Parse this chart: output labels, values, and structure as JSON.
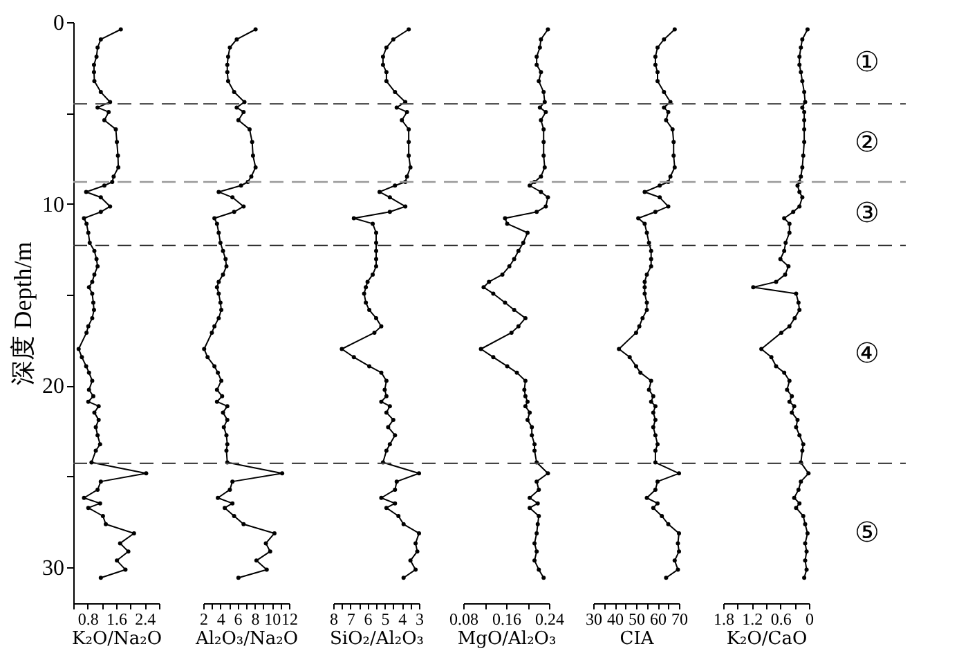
{
  "chart_data": [
    {
      "type": "line",
      "orientation": "horizontal",
      "color": "#000000",
      "marker": "circle",
      "xlabel": "K₂O/Na₂O",
      "ylabel": "深度 Depth/m",
      "xlim": [
        0.4,
        2.8
      ],
      "xticks": [
        {
          "value": 0.4,
          "label": null
        },
        0.8,
        {
          "value": 1.2,
          "label": null
        },
        1.6,
        {
          "value": 2.0,
          "label": null
        },
        2.4,
        {
          "value": 2.8,
          "label": null
        }
      ],
      "ylim": [
        32,
        0
      ],
      "yticks": [
        0,
        {
          "value": 5,
          "label": null
        },
        10,
        {
          "value": 15,
          "label": null
        },
        20,
        {
          "value": 25,
          "label": null
        },
        30
      ],
      "x": [
        0.4,
        0.95,
        1.4,
        1.9,
        2.35,
        2.75,
        3.25,
        3.85,
        4.4,
        4.7,
        4.95,
        5.4,
        5.9,
        6.6,
        7.35,
        8.0,
        8.5,
        8.8,
        9.0,
        9.35,
        9.65,
        10.15,
        10.45,
        10.8,
        11.1,
        11.6,
        12.15,
        12.6,
        13.05,
        13.45,
        13.9,
        14.3,
        14.6,
        14.95,
        15.45,
        15.85,
        16.3,
        16.75,
        17.1,
        18.0,
        18.45,
        18.95,
        19.3,
        19.75,
        20.25,
        20.6,
        20.9,
        21.15,
        21.5,
        21.9,
        22.3,
        22.75,
        23.25,
        23.6,
        24.25,
        24.85,
        25.3,
        25.75,
        26.2,
        26.5,
        26.75,
        27.2,
        27.65,
        28.15,
        28.7,
        29.15,
        29.65,
        30.15,
        30.6
      ],
      "values": [
        1.73,
        1.17,
        1.08,
        1.05,
        0.98,
        0.98,
        0.99,
        1.17,
        1.43,
        1.08,
        1.39,
        1.27,
        1.59,
        1.62,
        1.65,
        1.66,
        1.53,
        1.49,
        1.27,
        0.76,
        1.17,
        1.43,
        1.17,
        0.7,
        0.77,
        0.82,
        0.86,
        0.99,
        1.05,
        1.08,
        0.99,
        0.93,
        0.84,
        0.93,
        0.96,
        0.98,
        0.93,
        0.82,
        0.77,
        0.55,
        0.64,
        0.76,
        0.84,
        0.93,
        0.84,
        0.96,
        0.82,
        1.11,
        0.99,
        1.11,
        1.03,
        1.08,
        1.15,
        1.03,
        0.91,
        2.44,
        1.17,
        1.08,
        0.7,
        1.15,
        0.82,
        1.23,
        1.31,
        2.1,
        1.71,
        1.94,
        1.62,
        1.86,
        1.17
      ],
      "ref_lines": [
        {
          "axis": "y",
          "value": 4.5,
          "color": "#555555",
          "line_style": "dashed"
        },
        {
          "axis": "y",
          "value": 8.8,
          "color": "#999999",
          "line_style": "dashed"
        },
        {
          "axis": "y",
          "value": 12.3,
          "color": "#333333",
          "line_style": "dashed"
        },
        {
          "axis": "y",
          "value": 24.3,
          "color": "#444444",
          "line_style": "dashed"
        }
      ]
    },
    {
      "type": "line",
      "orientation": "horizontal",
      "color": "#000000",
      "marker": "circle",
      "xlabel": "Al₂O₃/Na₂O",
      "tick_labels": "x",
      "xlim": [
        2,
        12
      ],
      "xticks": [
        2,
        {
          "value": 3,
          "label": null
        },
        4,
        {
          "value": 5,
          "label": null
        },
        6,
        {
          "value": 7,
          "label": null
        },
        8,
        {
          "value": 9,
          "label": null
        },
        10,
        {
          "value": 11,
          "label": null
        },
        12
      ],
      "ylim": [
        32,
        0
      ],
      "x": [
        0.4,
        0.95,
        1.4,
        1.9,
        2.35,
        2.75,
        3.25,
        3.85,
        4.4,
        4.7,
        4.95,
        5.4,
        5.9,
        6.6,
        7.35,
        8.0,
        8.5,
        8.8,
        9.0,
        9.35,
        9.65,
        10.15,
        10.45,
        10.8,
        11.1,
        11.6,
        12.15,
        12.6,
        13.05,
        13.45,
        13.9,
        14.3,
        14.6,
        14.95,
        15.45,
        15.85,
        16.3,
        16.75,
        17.1,
        18.0,
        18.45,
        18.95,
        19.3,
        19.75,
        20.25,
        20.6,
        20.9,
        21.15,
        21.5,
        21.9,
        22.3,
        22.75,
        23.25,
        23.6,
        24.25,
        24.85,
        25.3,
        25.75,
        26.2,
        26.5,
        26.75,
        27.2,
        27.65,
        28.15,
        28.7,
        29.15,
        29.65,
        30.15,
        30.6
      ],
      "values": [
        8.1,
        5.9,
        5.1,
        4.9,
        4.8,
        4.8,
        4.9,
        5.6,
        6.8,
        5.9,
        6.7,
        6.1,
        7.4,
        7.7,
        7.8,
        8.1,
        7.6,
        7.2,
        6.4,
        3.8,
        5.4,
        6.7,
        5.6,
        3.3,
        3.6,
        3.8,
        4.0,
        4.3,
        4.6,
        4.7,
        4.3,
        3.8,
        3.6,
        3.8,
        4.0,
        4.1,
        3.8,
        3.3,
        3.0,
        2.1,
        2.5,
        3.3,
        3.7,
        4.1,
        3.6,
        4.2,
        3.6,
        4.8,
        4.3,
        4.8,
        4.4,
        4.7,
        4.8,
        4.7,
        4.8,
        11.2,
        5.4,
        5.1,
        3.7,
        5.4,
        4.5,
        5.6,
        6.7,
        10.3,
        9.3,
        9.8,
        8.2,
        9.4,
        6.1
      ],
      "ref_lines": [
        {
          "axis": "y",
          "value": 4.5,
          "color": "#555555",
          "line_style": "dashed"
        },
        {
          "axis": "y",
          "value": 8.8,
          "color": "#999999",
          "line_style": "dashed"
        },
        {
          "axis": "y",
          "value": 12.3,
          "color": "#333333",
          "line_style": "dashed"
        },
        {
          "axis": "y",
          "value": 24.3,
          "color": "#444444",
          "line_style": "dashed"
        }
      ]
    },
    {
      "type": "line",
      "orientation": "horizontal",
      "color": "#000000",
      "marker": "circle",
      "xlabel": "SiO₂/Al₂O₃",
      "tick_labels": "x",
      "xlim": [
        8,
        3
      ],
      "xticks": [
        8,
        {
          "value": 7.5,
          "label": null
        },
        7,
        {
          "value": 6.5,
          "label": null
        },
        6,
        {
          "value": 5.5,
          "label": null
        },
        5,
        {
          "value": 4.5,
          "label": null
        },
        4,
        {
          "value": 3.5,
          "label": null
        },
        3
      ],
      "ylim": [
        32,
        0
      ],
      "x": [
        0.4,
        0.95,
        1.4,
        1.9,
        2.35,
        2.75,
        3.25,
        3.85,
        4.4,
        4.7,
        4.95,
        5.4,
        5.9,
        6.6,
        7.35,
        8.0,
        8.5,
        8.8,
        9.0,
        9.35,
        9.65,
        10.15,
        10.45,
        10.8,
        11.1,
        11.6,
        12.15,
        12.6,
        13.05,
        13.45,
        13.9,
        14.3,
        14.6,
        14.95,
        15.45,
        15.85,
        16.3,
        16.75,
        17.1,
        18.0,
        18.45,
        18.95,
        19.3,
        19.75,
        20.25,
        20.6,
        20.9,
        21.15,
        21.5,
        21.9,
        22.3,
        22.75,
        23.25,
        23.6,
        24.25,
        24.85,
        25.3,
        25.75,
        26.2,
        26.5,
        26.75,
        27.2,
        27.65,
        28.15,
        28.7,
        29.15,
        29.65,
        30.15,
        30.6
      ],
      "values": [
        3.6,
        4.5,
        4.9,
        5.1,
        5.1,
        4.9,
        4.9,
        4.4,
        3.8,
        4.3,
        3.7,
        4.0,
        3.6,
        3.6,
        3.6,
        3.5,
        3.7,
        3.8,
        4.4,
        5.3,
        4.7,
        3.8,
        4.7,
        6.8,
        5.7,
        5.5,
        5.5,
        5.5,
        5.5,
        5.5,
        5.7,
        6.0,
        6.1,
        6.2,
        6.1,
        5.9,
        5.5,
        5.2,
        5.6,
        7.5,
        6.8,
        5.9,
        5.2,
        4.9,
        5.0,
        4.9,
        5.2,
        4.7,
        4.9,
        4.5,
        4.8,
        4.4,
        4.7,
        4.9,
        5.1,
        3.0,
        4.3,
        4.4,
        5.2,
        4.4,
        4.9,
        4.2,
        3.9,
        3.0,
        3.2,
        3.1,
        3.5,
        3.2,
        3.9
      ],
      "ref_lines": [
        {
          "axis": "y",
          "value": 4.5,
          "color": "#555555",
          "line_style": "dashed"
        },
        {
          "axis": "y",
          "value": 8.8,
          "color": "#999999",
          "line_style": "dashed"
        },
        {
          "axis": "y",
          "value": 12.3,
          "color": "#333333",
          "line_style": "dashed"
        },
        {
          "axis": "y",
          "value": 24.3,
          "color": "#444444",
          "line_style": "dashed"
        }
      ]
    },
    {
      "type": "line",
      "orientation": "horizontal",
      "color": "#000000",
      "marker": "circle",
      "xlabel": "MgO/Al₂O₃",
      "tick_labels": "x",
      "xlim": [
        0.08,
        0.24
      ],
      "xticks": [
        0.08,
        {
          "value": 0.12,
          "label": null
        },
        0.16,
        {
          "value": 0.2,
          "label": null
        },
        0.24
      ],
      "ylim": [
        32,
        0
      ],
      "x": [
        0.4,
        0.95,
        1.4,
        1.9,
        2.35,
        2.75,
        3.25,
        3.85,
        4.4,
        4.7,
        4.95,
        5.4,
        5.9,
        6.6,
        7.35,
        8.0,
        8.5,
        8.8,
        9.0,
        9.35,
        9.65,
        10.15,
        10.45,
        10.8,
        11.1,
        11.6,
        12.15,
        12.6,
        13.05,
        13.45,
        13.9,
        14.3,
        14.6,
        14.95,
        15.45,
        15.85,
        16.3,
        16.75,
        17.1,
        18.0,
        18.45,
        18.95,
        19.3,
        19.75,
        20.25,
        20.6,
        20.9,
        21.15,
        21.5,
        21.9,
        22.3,
        22.75,
        23.25,
        23.6,
        24.25,
        24.85,
        25.3,
        25.75,
        26.2,
        26.5,
        26.75,
        27.2,
        27.65,
        28.15,
        28.7,
        29.15,
        29.65,
        30.15,
        30.6
      ],
      "values": [
        0.238,
        0.225,
        0.223,
        0.217,
        0.217,
        0.225,
        0.221,
        0.23,
        0.232,
        0.223,
        0.234,
        0.225,
        0.23,
        0.23,
        0.23,
        0.232,
        0.225,
        0.213,
        0.204,
        0.225,
        0.238,
        0.234,
        0.217,
        0.158,
        0.162,
        0.2,
        0.192,
        0.183,
        0.175,
        0.166,
        0.153,
        0.128,
        0.118,
        0.136,
        0.158,
        0.175,
        0.196,
        0.183,
        0.17,
        0.113,
        0.136,
        0.162,
        0.18,
        0.196,
        0.194,
        0.196,
        0.2,
        0.196,
        0.204,
        0.2,
        0.208,
        0.208,
        0.213,
        0.213,
        0.217,
        0.238,
        0.217,
        0.221,
        0.204,
        0.219,
        0.204,
        0.221,
        0.219,
        0.217,
        0.213,
        0.217,
        0.213,
        0.221,
        0.23
      ],
      "ref_lines": [
        {
          "axis": "y",
          "value": 4.5,
          "color": "#555555",
          "line_style": "dashed"
        },
        {
          "axis": "y",
          "value": 8.8,
          "color": "#999999",
          "line_style": "dashed"
        },
        {
          "axis": "y",
          "value": 12.3,
          "color": "#333333",
          "line_style": "dashed"
        },
        {
          "axis": "y",
          "value": 24.3,
          "color": "#444444",
          "line_style": "dashed"
        }
      ]
    },
    {
      "type": "line",
      "orientation": "horizontal",
      "color": "#000000",
      "marker": "circle",
      "xlabel": "CIA",
      "tick_labels": "x",
      "xlim": [
        30,
        70
      ],
      "xticks": [
        30,
        {
          "value": 35,
          "label": null
        },
        40,
        {
          "value": 45,
          "label": null
        },
        50,
        {
          "value": 55,
          "label": null
        },
        60,
        {
          "value": 65,
          "label": null
        },
        70
      ],
      "ylim": [
        32,
        0
      ],
      "x": [
        0.4,
        0.95,
        1.4,
        1.9,
        2.35,
        2.75,
        3.25,
        3.85,
        4.4,
        4.7,
        4.95,
        5.4,
        5.9,
        6.6,
        7.35,
        8.0,
        8.5,
        8.8,
        9.0,
        9.35,
        9.65,
        10.15,
        10.45,
        10.8,
        11.1,
        11.6,
        12.15,
        12.6,
        13.05,
        13.45,
        13.9,
        14.3,
        14.6,
        14.95,
        15.45,
        15.85,
        16.3,
        16.75,
        17.1,
        18.0,
        18.45,
        18.95,
        19.3,
        19.75,
        20.25,
        20.6,
        20.9,
        21.15,
        21.5,
        21.9,
        22.3,
        22.75,
        23.25,
        23.6,
        24.25,
        24.85,
        25.3,
        25.75,
        26.2,
        26.5,
        26.75,
        27.2,
        27.65,
        28.15,
        28.7,
        29.15,
        29.65,
        30.15,
        30.6
      ],
      "values": [
        68,
        63,
        60,
        59,
        59,
        60,
        60,
        63,
        66,
        63,
        65,
        64,
        67,
        67.5,
        67.5,
        68,
        66,
        65,
        61,
        54,
        61,
        65,
        59,
        51,
        54,
        55,
        56,
        57,
        57,
        57,
        55,
        54,
        54,
        54,
        55,
        55,
        53,
        51.5,
        50,
        42,
        47,
        50,
        52,
        57,
        56,
        58,
        57,
        59,
        58,
        59,
        58,
        59,
        60,
        59,
        59,
        70,
        60,
        59,
        55,
        60,
        58,
        62,
        65,
        70,
        69.5,
        70,
        68,
        69.5,
        64
      ],
      "ref_lines": [
        {
          "axis": "y",
          "value": 4.5,
          "color": "#555555",
          "line_style": "dashed"
        },
        {
          "axis": "y",
          "value": 8.8,
          "color": "#999999",
          "line_style": "dashed"
        },
        {
          "axis": "y",
          "value": 12.3,
          "color": "#333333",
          "line_style": "dashed"
        },
        {
          "axis": "y",
          "value": 24.3,
          "color": "#444444",
          "line_style": "dashed"
        }
      ]
    },
    {
      "type": "line",
      "orientation": "horizontal",
      "color": "#000000",
      "marker": "circle",
      "xlabel": "K₂O/CaO",
      "tick_labels": "x",
      "xlim": [
        1.8,
        0
      ],
      "xticks": [
        1.8,
        {
          "value": 1.5,
          "label": null
        },
        1.2,
        {
          "value": 0.9,
          "label": null
        },
        0.6,
        {
          "value": 0.3,
          "label": null
        },
        0
      ],
      "ylim": [
        32,
        0
      ],
      "x": [
        0.4,
        0.95,
        1.4,
        1.9,
        2.35,
        2.75,
        3.25,
        3.85,
        4.4,
        4.7,
        4.95,
        5.4,
        5.9,
        6.6,
        7.35,
        8.0,
        8.5,
        8.8,
        9.0,
        9.35,
        9.65,
        10.15,
        10.45,
        10.8,
        11.1,
        11.6,
        12.15,
        12.6,
        13.05,
        13.45,
        13.9,
        14.3,
        14.6,
        14.95,
        15.45,
        15.85,
        16.3,
        16.75,
        17.1,
        18.0,
        18.45,
        18.95,
        19.3,
        19.75,
        20.25,
        20.6,
        20.9,
        21.15,
        21.5,
        21.9,
        22.3,
        22.75,
        23.25,
        23.6,
        24.25,
        24.85,
        25.3,
        25.75,
        26.2,
        26.5,
        26.75,
        27.2,
        27.65,
        28.15,
        28.7,
        29.15,
        29.65,
        30.15,
        30.6
      ],
      "values": [
        0.03,
        0.14,
        0.17,
        0.2,
        0.2,
        0.17,
        0.14,
        0.1,
        0.08,
        0.14,
        0.1,
        0.1,
        0.1,
        0.1,
        0.12,
        0.14,
        0.17,
        0.2,
        0.24,
        0.2,
        0.14,
        0.2,
        0.33,
        0.52,
        0.41,
        0.41,
        0.49,
        0.52,
        0.6,
        0.43,
        0.5,
        0.69,
        1.17,
        0.27,
        0.22,
        0.2,
        0.3,
        0.41,
        0.58,
        1.0,
        0.79,
        0.69,
        0.52,
        0.41,
        0.46,
        0.36,
        0.41,
        0.31,
        0.36,
        0.24,
        0.27,
        0.2,
        0.12,
        0.14,
        0.17,
        0.01,
        0.17,
        0.22,
        0.31,
        0.2,
        0.27,
        0.12,
        0.08,
        0.03,
        0.08,
        0.05,
        0.08,
        0.05,
        0.1
      ],
      "ref_lines": [
        {
          "axis": "y",
          "value": 4.5,
          "color": "#555555",
          "line_style": "dashed"
        },
        {
          "axis": "y",
          "value": 8.8,
          "color": "#999999",
          "line_style": "dashed"
        },
        {
          "axis": "y",
          "value": 12.3,
          "color": "#333333",
          "line_style": "dashed"
        },
        {
          "axis": "y",
          "value": 24.3,
          "color": "#444444",
          "line_style": "dashed"
        }
      ],
      "annotations": [
        "①",
        "②",
        "③",
        "④",
        "⑤"
      ]
    }
  ]
}
